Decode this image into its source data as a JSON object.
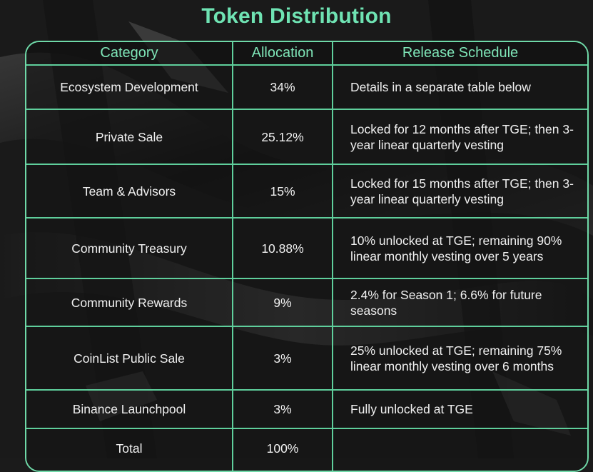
{
  "title": "Token Distribution",
  "headers": {
    "category": "Category",
    "allocation": "Allocation",
    "schedule": "Release Schedule"
  },
  "rows": [
    {
      "category": "Ecosystem Development",
      "allocation": "34%",
      "schedule": "Details in a separate table below"
    },
    {
      "category": "Private Sale",
      "allocation": "25.12%",
      "schedule": "Locked for 12 months after TGE; then 3-year linear quarterly vesting"
    },
    {
      "category": "Team & Advisors",
      "allocation": "15%",
      "schedule": "Locked for 15 months after TGE; then 3-year linear quarterly vesting"
    },
    {
      "category": "Community Treasury",
      "allocation": "10.88%",
      "schedule": "10% unlocked at TGE; remaining 90% linear monthly vesting over 5 years"
    },
    {
      "category": "Community Rewards",
      "allocation": "9%",
      "schedule": "2.4% for Season 1; 6.6% for future seasons"
    },
    {
      "category": "CoinList Public Sale",
      "allocation": "3%",
      "schedule": "25% unlocked at TGE; remaining 75% linear monthly vesting over 6 months"
    },
    {
      "category": "Binance Launchpool",
      "allocation": "3%",
      "schedule": "Fully unlocked at TGE"
    }
  ],
  "total": {
    "category": "Total",
    "allocation": "100%",
    "schedule": ""
  },
  "colors": {
    "accent": "#6fe3b3",
    "border": "#5fcf9c",
    "background": "#1b1b1b",
    "text": "#f0f0f0"
  }
}
